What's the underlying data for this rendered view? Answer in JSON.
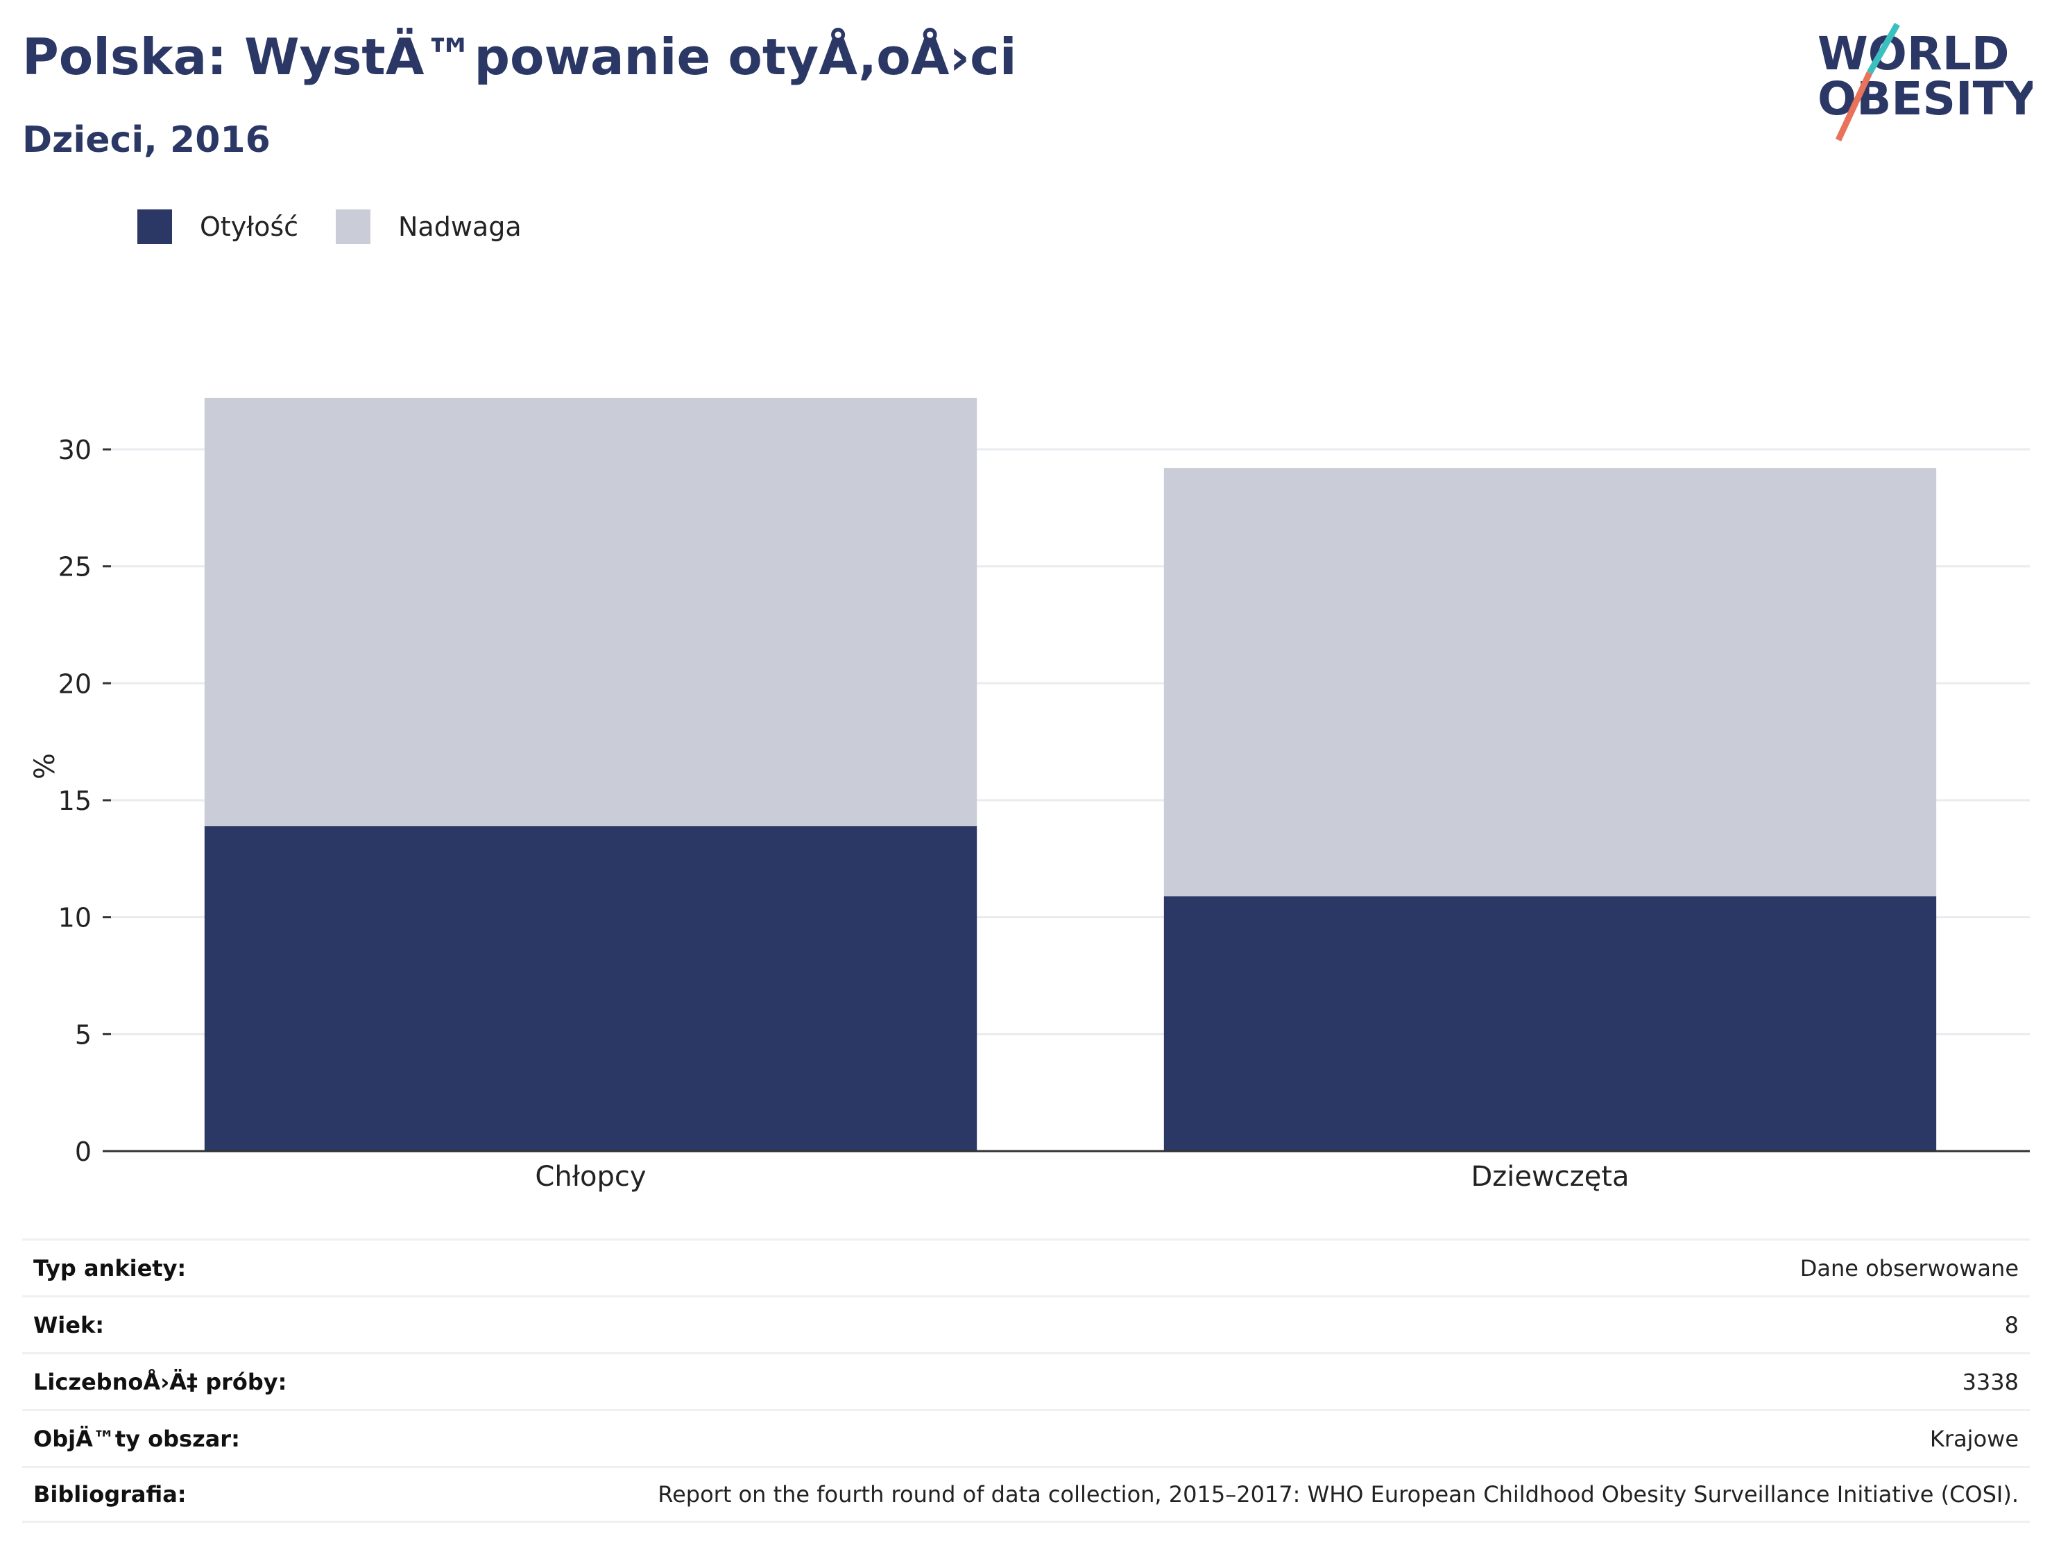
{
  "header": {
    "title": "Polska: WystÄ™powanie otyÅ‚oÅ›ci",
    "subtitle": "Dzieci, 2016"
  },
  "logo": {
    "line1": "WORLD",
    "line2": "OBESITY"
  },
  "colors": {
    "obesity": "#2b3765",
    "overweight": "#cacdd8",
    "title": "#2b3866",
    "logo_teal": "#3bbfbf",
    "logo_coral": "#e8735a"
  },
  "chart_data": {
    "type": "bar",
    "stacked": true,
    "categories": [
      "Chłopcy",
      "Dziewczęta"
    ],
    "series": [
      {
        "name": "Otyłość",
        "values": [
          13.9,
          10.9
        ]
      },
      {
        "name": "Nadwaga",
        "values": [
          18.3,
          18.3
        ]
      }
    ],
    "ylabel": "%",
    "ylim": [
      0,
      33.5
    ],
    "yticks": [
      0,
      5,
      10,
      15,
      20,
      25,
      30
    ],
    "grid": true,
    "legend_position": "top-left"
  },
  "info": [
    {
      "label": "Typ ankiety:",
      "value": "Dane obserwowane"
    },
    {
      "label": "Wiek:",
      "value": "8"
    },
    {
      "label": "LiczebnoÅ›Ä‡ próby:",
      "value": "3338"
    },
    {
      "label": "ObjÄ™ty obszar:",
      "value": "Krajowe"
    },
    {
      "label": "Bibliografia:",
      "value": "Report on the fourth round of data collection, 2015–2017: WHO European Childhood Obesity Surveillance Initiative (COSI)."
    }
  ]
}
